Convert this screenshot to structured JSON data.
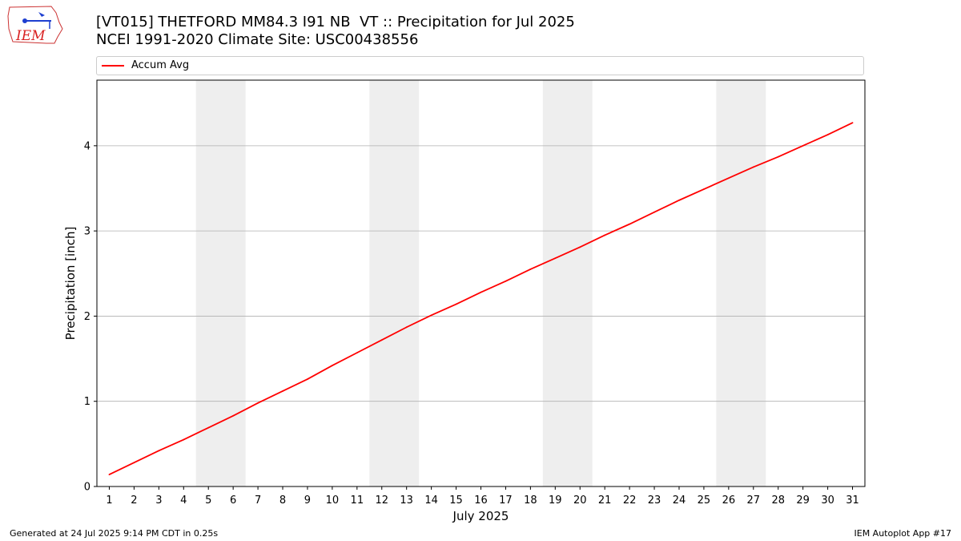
{
  "header": {
    "title_line1": "[VT015] THETFORD MM84.3 I91 NB  VT :: Precipitation for Jul 2025",
    "title_line2": "NCEI 1991-2020 Climate Site: USC00438556",
    "logo_text": "IEM"
  },
  "footer": {
    "generated": "Generated at 24 Jul 2025 9:14 PM CDT in 0.25s",
    "app": "IEM Autoplot App #17"
  },
  "chart_data": {
    "type": "line",
    "title": "[VT015] THETFORD MM84.3 I91 NB  VT :: Precipitation for Jul 2025",
    "subtitle": "NCEI 1991-2020 Climate Site: USC00438556",
    "xlabel": "July 2025",
    "ylabel": "Precipitation [inch]",
    "x": [
      1,
      2,
      3,
      4,
      5,
      6,
      7,
      8,
      9,
      10,
      11,
      12,
      13,
      14,
      15,
      16,
      17,
      18,
      19,
      20,
      21,
      22,
      23,
      24,
      25,
      26,
      27,
      28,
      29,
      30,
      31
    ],
    "xlim": [
      0.5,
      31.5
    ],
    "ylim": [
      0,
      4.77
    ],
    "yticks": [
      0,
      1,
      2,
      3,
      4
    ],
    "grid": "horizontal",
    "legend_position": "top",
    "weekend_shading": [
      [
        4.5,
        6.5
      ],
      [
        11.5,
        13.5
      ],
      [
        18.5,
        20.5
      ],
      [
        25.5,
        27.5
      ]
    ],
    "series": [
      {
        "name": "Accum Avg",
        "color": "#ff0000",
        "values": [
          0.14,
          0.28,
          0.42,
          0.55,
          0.69,
          0.83,
          0.98,
          1.12,
          1.26,
          1.42,
          1.57,
          1.72,
          1.87,
          2.01,
          2.14,
          2.28,
          2.41,
          2.55,
          2.68,
          2.81,
          2.95,
          3.08,
          3.22,
          3.36,
          3.49,
          3.62,
          3.75,
          3.87,
          4.0,
          4.13,
          4.27
        ]
      }
    ],
    "colors": {
      "shade": "#eeeeee",
      "grid": "#b0b0b0",
      "line": "#ff0000"
    }
  }
}
